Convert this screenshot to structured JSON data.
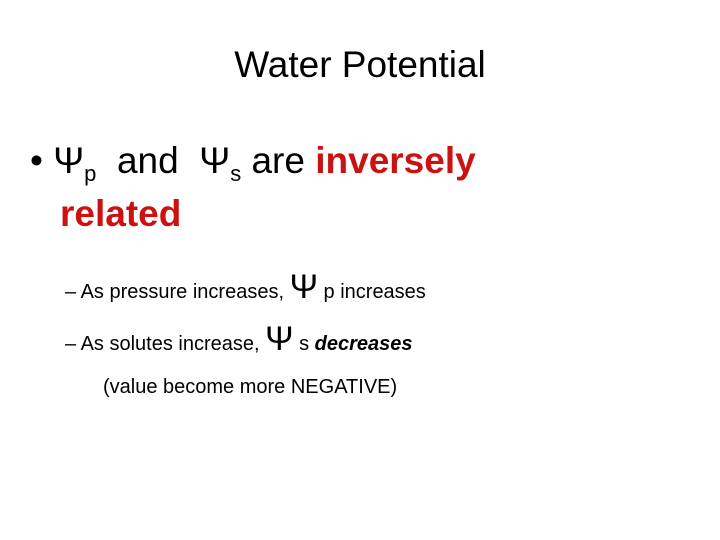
{
  "title": "Water Potential",
  "bullet": {
    "marker": "•",
    "parts": [
      "Ψ",
      "p",
      "and",
      "Ψ",
      "s",
      "are",
      "inversely",
      "related"
    ]
  },
  "sub_bullets": [
    {
      "marker": "–",
      "parts": [
        "As pressure increases,",
        "Ψ",
        "p increases"
      ]
    },
    {
      "marker": "–",
      "parts": [
        "As solutes increase,",
        "Ψ",
        "s",
        "decreases"
      ],
      "note": "(value become more NEGATIVE)"
    }
  ]
}
